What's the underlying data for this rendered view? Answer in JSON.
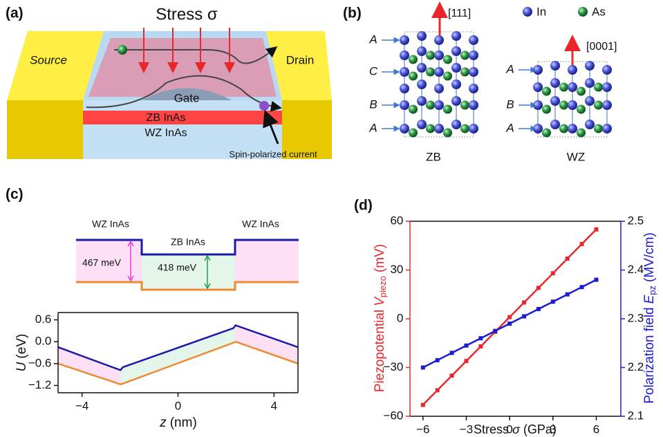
{
  "panel_a": {
    "label": "(a)",
    "stress": "Stress σ",
    "source": "Source",
    "drain": "Drain",
    "gate": "Gate",
    "zb": "ZB InAs",
    "wz": "WZ InAs",
    "note": "Spin-polarized current"
  },
  "panel_b": {
    "label": "(b)",
    "dir_zb": "[111]",
    "dir_wz": "[0001]",
    "legend_in": "In",
    "legend_as": "As",
    "zb_layers": [
      "A",
      "C",
      "B",
      "A"
    ],
    "wz_layers": [
      "A",
      "B",
      "A"
    ],
    "zb": "ZB",
    "wz": "WZ"
  },
  "panel_c": {
    "label": "(c)",
    "wz_left": "WZ InAs",
    "zb": "ZB InAs",
    "wz_right": "WZ InAs",
    "gap_wz": "467 meV",
    "gap_zb": "418 meV"
  },
  "chart_data": [
    {
      "type": "line",
      "ylabel_symbol": "U",
      "ylabel_unit": "(eV)",
      "xlabel_symbol": "z",
      "xlabel_unit": "(nm)",
      "x": [
        -5,
        -2.4,
        -2.3,
        2.3,
        2.4,
        5
      ],
      "series": [
        {
          "color": "#1a1aa8",
          "values": [
            -0.15,
            -0.78,
            -0.7,
            0.37,
            0.45,
            -0.15
          ]
        },
        {
          "color": "#f08a30",
          "values": [
            -0.6,
            -1.17,
            -1.15,
            -0.03,
            0.0,
            -0.6
          ]
        }
      ],
      "fill_between": true,
      "xlim": [
        -5,
        5
      ],
      "ylim": [
        -1.4,
        0.8
      ],
      "xticks": [
        {
          "value": -4,
          "label": "−4"
        },
        0,
        4
      ],
      "yticks": [
        0.6,
        {
          "value": 0,
          "label": "0.0"
        },
        {
          "value": -0.6,
          "label": "−0.6"
        },
        {
          "value": -1.2,
          "label": "−1.2"
        }
      ]
    },
    {
      "type": "line",
      "panel_label": "(d)",
      "markers": true,
      "ylabel": [
        "Piezopotential",
        "V",
        "piezo",
        "(mV)"
      ],
      "y2label": [
        "Polarization field",
        "E",
        "pz",
        "(MV/cm)"
      ],
      "xlabel": [
        "Stress",
        "σ",
        "(GPa)"
      ],
      "x": [
        -6,
        -5,
        -4,
        -3,
        -2,
        -1,
        0,
        1,
        2,
        3,
        4,
        5,
        6
      ],
      "series": [
        {
          "color": "#e8262b",
          "values": [
            -53,
            -44,
            -35,
            -26,
            -17,
            -8,
            1,
            10,
            19,
            28,
            37,
            46,
            55
          ]
        },
        {
          "color": "#1b1bd6",
          "axis": "y2",
          "values": [
            2.2,
            2.215,
            2.23,
            2.245,
            2.26,
            2.275,
            2.29,
            2.305,
            2.32,
            2.335,
            2.35,
            2.365,
            2.38
          ]
        }
      ],
      "xlim": [
        -6.9,
        7.7
      ],
      "ylim": [
        -60,
        60
      ],
      "y2lim": [
        2.1,
        2.5
      ],
      "xticks": [
        {
          "value": -6,
          "label": "−6"
        },
        {
          "value": -3,
          "label": "−3"
        },
        0,
        3,
        6
      ],
      "yticks": [
        {
          "value": -60,
          "label": "−60"
        },
        {
          "value": -30,
          "label": "−30"
        },
        0,
        30,
        60
      ],
      "y2ticks": [
        2.1,
        2.2,
        2.3,
        2.4,
        2.5
      ]
    }
  ]
}
